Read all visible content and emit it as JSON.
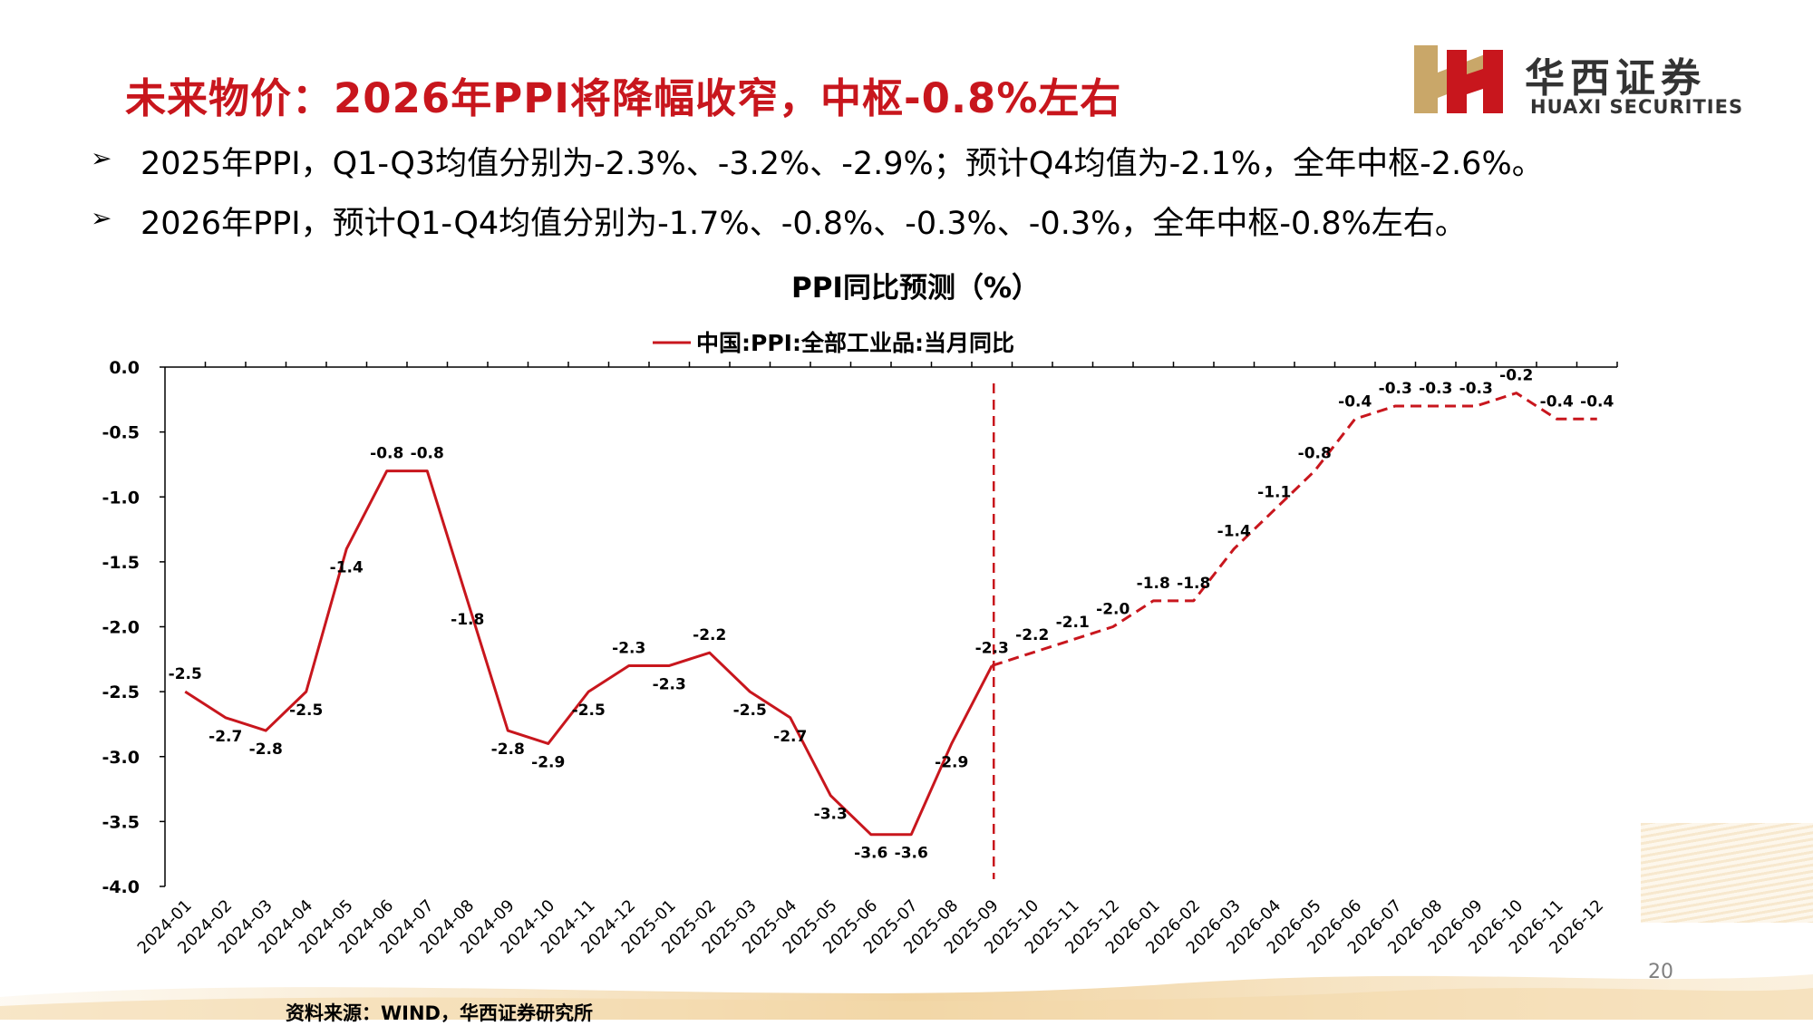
{
  "slide": {
    "title": "未来物价：2026年PPI将降幅收窄，中枢-0.8%左右",
    "page_number": "20",
    "source": "资料来源：WIND，华西证券研究所",
    "bullet_marker": "➢"
  },
  "logo": {
    "name_cn": "华西证券",
    "name_en": "HUAXI SECURITIES",
    "colors": {
      "red": "#c8161d",
      "gold": "#c9a769"
    }
  },
  "bullets": [
    "2025年PPI，Q1-Q3均值分别为-2.3%、-3.2%、-2.9%；预计Q4均值为-2.1%，全年中枢-2.6%。",
    "2026年PPI，预计Q1-Q4均值分别为-1.7%、-0.8%、-0.3%、-0.3%，全年中枢-0.8%左右。"
  ],
  "chart_data": {
    "type": "line",
    "title": "PPI同比预测（%）",
    "legend": {
      "label": "中国:PPI:全部工业品:当月同比",
      "position": "top-center"
    },
    "colors": {
      "series": "#c8161d",
      "axis": "#000000"
    },
    "ylim": [
      -4.0,
      0.0
    ],
    "y_ticks": [
      "0.0",
      "-0.5",
      "-1.0",
      "-1.5",
      "-2.0",
      "-2.5",
      "-3.0",
      "-3.5",
      "-4.0"
    ],
    "y_tick_values": [
      0.0,
      -0.5,
      -1.0,
      -1.5,
      -2.0,
      -2.5,
      -3.0,
      -3.5,
      -4.0
    ],
    "grid": false,
    "forecast_start_category": "2025-09",
    "categories": [
      "2024-01",
      "2024-02",
      "2024-03",
      "2024-04",
      "2024-05",
      "2024-06",
      "2024-07",
      "2024-08",
      "2024-09",
      "2024-10",
      "2024-11",
      "2024-12",
      "2025-01",
      "2025-02",
      "2025-03",
      "2025-04",
      "2025-05",
      "2025-06",
      "2025-07",
      "2025-08",
      "2025-09",
      "2025-10",
      "2025-11",
      "2025-12",
      "2026-01",
      "2026-02",
      "2026-03",
      "2026-04",
      "2026-05",
      "2026-06",
      "2026-07",
      "2026-08",
      "2026-09",
      "2026-10",
      "2026-11",
      "2026-12"
    ],
    "values": [
      -2.5,
      -2.7,
      -2.8,
      -2.5,
      -1.4,
      -0.8,
      -0.8,
      -1.8,
      -2.8,
      -2.9,
      -2.5,
      -2.3,
      -2.3,
      -2.2,
      -2.5,
      -2.7,
      -3.3,
      -3.6,
      -3.6,
      -2.9,
      -2.3,
      -2.2,
      -2.1,
      -2.0,
      -1.8,
      -1.8,
      -1.4,
      -1.1,
      -0.8,
      -0.4,
      -0.3,
      -0.3,
      -0.3,
      -0.2,
      -0.4,
      -0.4
    ],
    "data_labels": [
      "-2.5",
      "-2.7",
      "-2.8",
      "-2.5",
      "-1.4",
      "-0.8",
      "-0.8",
      "-1.8",
      "-2.8",
      "-2.9",
      "-2.5",
      "-2.3",
      "-2.3",
      "-2.2",
      "-2.5",
      "-2.7",
      "-3.3",
      "-3.6",
      "-3.6",
      "-2.9",
      "-2.3",
      "-2.2",
      "-2.1",
      "-2.0",
      "-1.8",
      "-1.8",
      "-1.4",
      "-1.1",
      "-0.8",
      "-0.4",
      "-0.3",
      "-0.3",
      "-0.3",
      "-0.2",
      "-0.4",
      "-0.4"
    ],
    "line_style": {
      "actual": "solid",
      "forecast": "dashed"
    }
  }
}
